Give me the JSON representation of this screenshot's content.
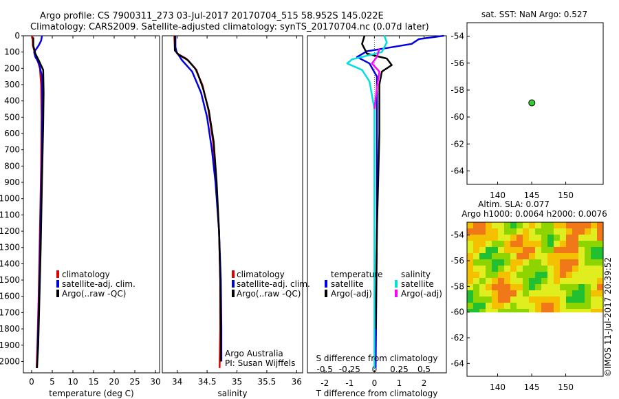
{
  "header": {
    "title_line1": "Argo profile: CS 7900311_273 03-Jul-2017 20170704_515 58.952S 145.022E",
    "title_line2": "Climatology: CARS2009. Satellite-adjusted climatology: synTS_20170704.nc (0.07d later)"
  },
  "credit": "©IMOS 11-Jul-2017 20:39:52",
  "chart_data": [
    {
      "id": "temperature",
      "type": "line",
      "xlabel": "temperature (deg C)",
      "xlim": [
        -2,
        31
      ],
      "xticks": [
        0,
        5,
        10,
        15,
        20,
        25,
        30
      ],
      "ylim": [
        0,
        2070
      ],
      "yticks": [
        0,
        100,
        200,
        300,
        400,
        500,
        600,
        700,
        800,
        900,
        1000,
        1100,
        1200,
        1300,
        1400,
        1500,
        1600,
        1700,
        1800,
        1900,
        2000
      ],
      "legend": [
        "climatology",
        "satellite-adj. clim.",
        "Argo(..raw -QC)"
      ],
      "series": [
        {
          "name": "climatology",
          "color": "#e00000",
          "points": [
            [
              0.2,
              0
            ],
            [
              0.3,
              60
            ],
            [
              0.8,
              110
            ],
            [
              1.3,
              140
            ],
            [
              2.0,
              200
            ],
            [
              2.3,
              300
            ],
            [
              2.4,
              500
            ],
            [
              2.3,
              800
            ],
            [
              2.0,
              1200
            ],
            [
              1.7,
              1600
            ],
            [
              1.4,
              1900
            ],
            [
              1.2,
              2040
            ]
          ]
        },
        {
          "name": "satellite-adj. clim.",
          "color": "#0000e0",
          "points": [
            [
              2.5,
              0
            ],
            [
              2.3,
              30
            ],
            [
              1.7,
              60
            ],
            [
              0.6,
              100
            ],
            [
              0.9,
              130
            ],
            [
              1.8,
              170
            ],
            [
              2.5,
              250
            ],
            [
              2.6,
              400
            ],
            [
              2.5,
              700
            ],
            [
              2.2,
              1100
            ],
            [
              1.9,
              1500
            ],
            [
              1.6,
              1800
            ],
            [
              1.3,
              2040
            ]
          ]
        },
        {
          "name": "Argo(..raw -QC)",
          "color": "#000000",
          "points": [
            [
              0.4,
              10
            ],
            [
              0.4,
              60
            ],
            [
              0.9,
              110
            ],
            [
              1.9,
              160
            ],
            [
              2.8,
              210
            ],
            [
              2.9,
              350
            ],
            [
              2.8,
              550
            ],
            [
              2.5,
              900
            ],
            [
              2.2,
              1300
            ],
            [
              1.9,
              1600
            ],
            [
              1.6,
              1900
            ],
            [
              1.3,
              2040
            ]
          ]
        }
      ]
    },
    {
      "id": "salinity",
      "type": "line",
      "xlabel": "salinity",
      "xlim": [
        33.75,
        36.1
      ],
      "xticks": [
        34,
        34.5,
        35,
        35.5,
        36
      ],
      "ylim": [
        0,
        2070
      ],
      "legend": [
        "climatology",
        "satellite-adj. clim.",
        "Argo(..raw -QC)"
      ],
      "annotation": [
        "Argo Australia",
        "PI: Susan Wijffels"
      ],
      "series": [
        {
          "name": "climatology",
          "color": "#e00000",
          "points": [
            [
              33.95,
              0
            ],
            [
              33.96,
              80
            ],
            [
              34.0,
              110
            ],
            [
              34.15,
              140
            ],
            [
              34.3,
              200
            ],
            [
              34.42,
              300
            ],
            [
              34.52,
              450
            ],
            [
              34.6,
              650
            ],
            [
              34.65,
              900
            ],
            [
              34.7,
              1200
            ],
            [
              34.72,
              1500
            ],
            [
              34.72,
              1800
            ],
            [
              34.71,
              2040
            ]
          ]
        },
        {
          "name": "satellite-adj. clim.",
          "color": "#0000e0",
          "points": [
            [
              33.97,
              0
            ],
            [
              33.97,
              70
            ],
            [
              33.99,
              100
            ],
            [
              34.08,
              150
            ],
            [
              34.25,
              220
            ],
            [
              34.4,
              350
            ],
            [
              34.5,
              500
            ],
            [
              34.58,
              700
            ],
            [
              34.64,
              900
            ],
            [
              34.7,
              1200
            ],
            [
              34.73,
              1500
            ],
            [
              34.74,
              1800
            ],
            [
              34.74,
              2000
            ]
          ]
        },
        {
          "name": "Argo(..raw -QC)",
          "color": "#000000",
          "points": [
            [
              33.96,
              0
            ],
            [
              33.96,
              90
            ],
            [
              34.02,
              115
            ],
            [
              34.18,
              150
            ],
            [
              34.32,
              210
            ],
            [
              34.43,
              320
            ],
            [
              34.53,
              460
            ],
            [
              34.61,
              650
            ],
            [
              34.66,
              900
            ],
            [
              34.7,
              1200
            ],
            [
              34.72,
              1500
            ],
            [
              34.73,
              1800
            ],
            [
              34.73,
              2000
            ]
          ]
        }
      ]
    },
    {
      "id": "difference",
      "type": "line",
      "xlabel": "T difference from climatology",
      "xlabel_top": "S difference from climatology",
      "xlim": [
        -2.7,
        2.9
      ],
      "xticks": [
        -2,
        -1,
        0,
        1,
        2
      ],
      "xticks_s": [
        "-0.5",
        "-0.25",
        "0",
        "0.25",
        "0.5"
      ],
      "xticks_s_pos": [
        -2,
        -1,
        0,
        1,
        2
      ],
      "ylim": [
        0,
        2070
      ],
      "legend_header": [
        "temperature",
        "salinity"
      ],
      "legend": [
        "satellite",
        "Argo(-adj)",
        "satellite",
        "Argo(-adj)"
      ],
      "series": [
        {
          "name": "temperature satellite",
          "color": "#0000e0",
          "points": [
            [
              2.8,
              0
            ],
            [
              1.8,
              20
            ],
            [
              1.5,
              50
            ],
            [
              0.5,
              75
            ],
            [
              -0.3,
              95
            ],
            [
              -0.7,
              130
            ],
            [
              -0.2,
              170
            ],
            [
              0.1,
              250
            ],
            [
              0.1,
              600
            ],
            [
              0.1,
              1200
            ],
            [
              0.05,
              2040
            ]
          ]
        },
        {
          "name": "temperature Argo(-adj)",
          "color": "#000000",
          "points": [
            [
              -0.4,
              0
            ],
            [
              -0.5,
              50
            ],
            [
              -0.3,
              110
            ],
            [
              0.5,
              140
            ],
            [
              0.7,
              180
            ],
            [
              0.3,
              220
            ],
            [
              0.2,
              300
            ],
            [
              0.2,
              600
            ],
            [
              0.1,
              1200
            ],
            [
              0.05,
              1800
            ]
          ]
        },
        {
          "name": "salinity satellite",
          "color": "#00e0e0",
          "points": [
            [
              0.4,
              0
            ],
            [
              0.5,
              40
            ],
            [
              0.3,
              100
            ],
            [
              -0.9,
              145
            ],
            [
              -1.1,
              170
            ],
            [
              -0.5,
              210
            ],
            [
              -0.2,
              280
            ],
            [
              0.0,
              450
            ],
            [
              0.0,
              800
            ],
            [
              0.0,
              1200
            ],
            [
              0.0,
              2040
            ]
          ]
        },
        {
          "name": "salinity Argo(-adj)",
          "color": "#ff00ff",
          "points": [
            [
              0.2,
              80
            ],
            [
              0.1,
              130
            ],
            [
              -0.1,
              170
            ],
            [
              0.2,
              220
            ],
            [
              0.1,
              320
            ],
            [
              0.0,
              450
            ]
          ]
        }
      ]
    },
    {
      "id": "sst-map",
      "type": "scatter",
      "title": "sat. SST: NaN Argo: 0.527",
      "xlim": [
        135.5,
        155.5
      ],
      "xticks": [
        140,
        145,
        150
      ],
      "ylim": [
        -65,
        -53
      ],
      "yticks": [
        -54,
        -56,
        -58,
        -60,
        -62,
        -64
      ],
      "points": [
        {
          "x": 145.022,
          "y": -58.952,
          "color": "#33cc33"
        }
      ]
    },
    {
      "id": "sla-map",
      "type": "heatmap",
      "title_line1": "Altim. SLA: 0.077",
      "title_line2": "Argo h1000: 0.0064 h2000: 0.0076",
      "xlim": [
        135.5,
        155.5
      ],
      "xticks": [
        140,
        145,
        150
      ],
      "ylim": [
        -65,
        -53
      ],
      "yticks": [
        -54,
        -56,
        -58,
        -60,
        -62,
        -64
      ],
      "data_extent_lat": [
        -60,
        -53
      ],
      "palette": [
        "#22c030",
        "#8ed400",
        "#e0ee20",
        "#f4c000",
        "#f07818"
      ]
    }
  ]
}
